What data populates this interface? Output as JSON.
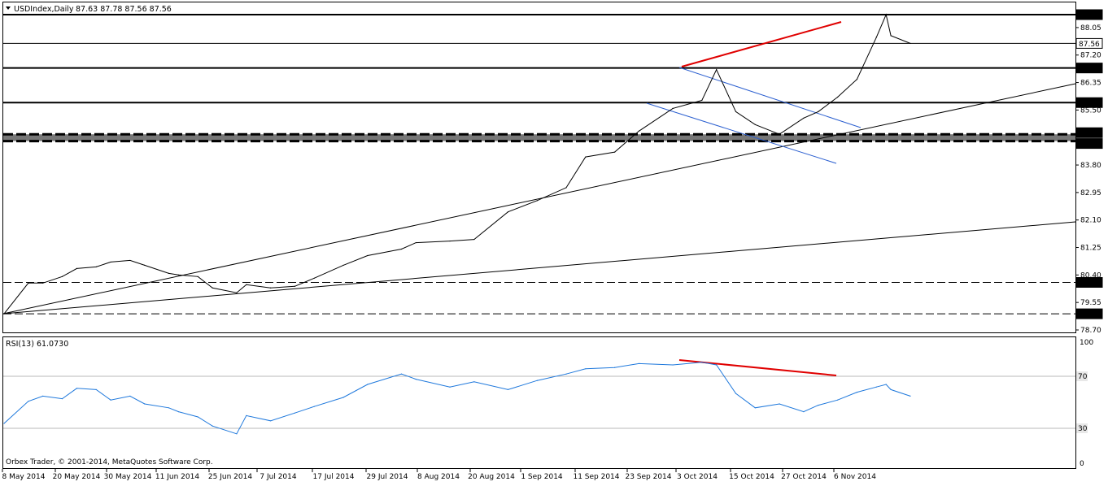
{
  "main_chart": {
    "title": "USDIndex,Daily",
    "ohlc": "87.63 87.78 87.56 87.56",
    "ylim": [
      78.4,
      88.9
    ],
    "y_ticks": [
      "88.05",
      "87.20",
      "86.35",
      "85.50",
      "83.80",
      "82.95",
      "82.10",
      "81.25",
      "80.40",
      "79.55",
      "78.70"
    ],
    "levels": [
      {
        "value": 88.45,
        "label": "88.45",
        "style": "solid-thick"
      },
      {
        "value": 87.56,
        "label": "87.56",
        "style": "solid-thin"
      },
      {
        "value": 86.8,
        "label": "86.80",
        "style": "solid-thick"
      },
      {
        "value": 85.73,
        "label": "85.73",
        "style": "solid-thick"
      },
      {
        "value": 84.75,
        "label": "84.75",
        "style": "zone-top"
      },
      {
        "value": 84.54,
        "label": "84.54",
        "style": "zone-bottom"
      },
      {
        "value": 80.17,
        "label": "80.17",
        "style": "dashed"
      },
      {
        "value": 79.2,
        "label": "79.20",
        "style": "dashed"
      }
    ],
    "copyright": "Orbex Trader, © 2001-2014, MetaQuotes Software Corp."
  },
  "chart_data": [
    {
      "type": "line",
      "title": "USDIndex,Daily",
      "x": [
        "2014-05-08",
        "2014-05-13",
        "2014-05-16",
        "2014-05-20",
        "2014-05-23",
        "2014-05-27",
        "2014-05-30",
        "2014-06-03",
        "2014-06-06",
        "2014-06-11",
        "2014-06-13",
        "2014-06-17",
        "2014-06-20",
        "2014-06-25",
        "2014-06-27",
        "2014-07-02",
        "2014-07-07",
        "2014-07-11",
        "2014-07-17",
        "2014-07-22",
        "2014-07-29",
        "2014-08-01",
        "2014-08-08",
        "2014-08-13",
        "2014-08-20",
        "2014-08-26",
        "2014-09-01",
        "2014-09-05",
        "2014-09-11",
        "2014-09-16",
        "2014-09-23",
        "2014-09-29",
        "2014-10-02",
        "2014-10-06",
        "2014-10-10",
        "2014-10-15",
        "2014-10-20",
        "2014-10-23",
        "2014-10-27",
        "2014-10-31",
        "2014-11-04",
        "2014-11-06",
        "2014-11-07",
        "2014-11-11"
      ],
      "values": [
        79.2,
        80.15,
        80.15,
        80.35,
        80.6,
        80.65,
        80.8,
        80.85,
        80.7,
        80.45,
        80.4,
        80.35,
        80.0,
        79.85,
        80.1,
        80.0,
        80.05,
        80.3,
        80.7,
        81.0,
        81.2,
        81.4,
        81.45,
        81.5,
        82.35,
        82.7,
        83.1,
        84.05,
        84.2,
        84.85,
        85.55,
        85.8,
        86.75,
        85.45,
        85.05,
        84.75,
        85.25,
        85.45,
        85.9,
        86.45,
        87.75,
        88.45,
        87.8,
        87.56
      ],
      "ylim": [
        78.4,
        88.9
      ]
    },
    {
      "type": "line",
      "title": "RSI(13) 61.0730",
      "x": [
        "2014-05-08",
        "2014-05-13",
        "2014-05-16",
        "2014-05-20",
        "2014-05-23",
        "2014-05-27",
        "2014-05-30",
        "2014-06-03",
        "2014-06-06",
        "2014-06-11",
        "2014-06-13",
        "2014-06-17",
        "2014-06-20",
        "2014-06-25",
        "2014-06-27",
        "2014-07-02",
        "2014-07-07",
        "2014-07-11",
        "2014-07-17",
        "2014-07-22",
        "2014-07-29",
        "2014-08-01",
        "2014-08-08",
        "2014-08-13",
        "2014-08-20",
        "2014-08-26",
        "2014-09-01",
        "2014-09-05",
        "2014-09-11",
        "2014-09-16",
        "2014-09-23",
        "2014-09-29",
        "2014-10-02",
        "2014-10-06",
        "2014-10-10",
        "2014-10-15",
        "2014-10-20",
        "2014-10-23",
        "2014-10-27",
        "2014-10-31",
        "2014-11-04",
        "2014-11-06",
        "2014-11-07",
        "2014-11-11"
      ],
      "values": [
        40,
        57,
        61,
        59,
        67,
        66,
        58,
        61,
        55,
        52,
        49,
        45,
        38,
        32,
        46,
        42,
        48,
        53,
        60,
        70,
        78,
        74,
        68,
        72,
        66,
        73,
        78,
        82,
        83,
        86,
        85,
        87,
        85,
        63,
        52,
        55,
        49,
        54,
        58,
        64,
        68,
        70,
        66,
        61
      ],
      "ylim": [
        0,
        100
      ]
    }
  ],
  "rsi_panel": {
    "title": "RSI(13) 61.0730",
    "level_labels": [
      "100",
      "70",
      "30",
      "0"
    ]
  },
  "x_axis_labels": [
    "8 May 2014",
    "20 May 2014",
    "30 May 2014",
    "11 Jun 2014",
    "25 Jun 2014",
    "7 Jul 2014",
    "17 Jul 2014",
    "29 Jul 2014",
    "8 Aug 2014",
    "20 Aug 2014",
    "1 Sep 2014",
    "11 Sep 2014",
    "23 Sep 2014",
    "3 Oct 2014",
    "15 Oct 2014",
    "27 Oct 2014",
    "6 Nov 2014"
  ],
  "colors": {
    "price": "#000000",
    "rsi": "#1e78dc",
    "divergence": "#e00000",
    "channel": "#2b5fd0",
    "zone": "#777777"
  }
}
